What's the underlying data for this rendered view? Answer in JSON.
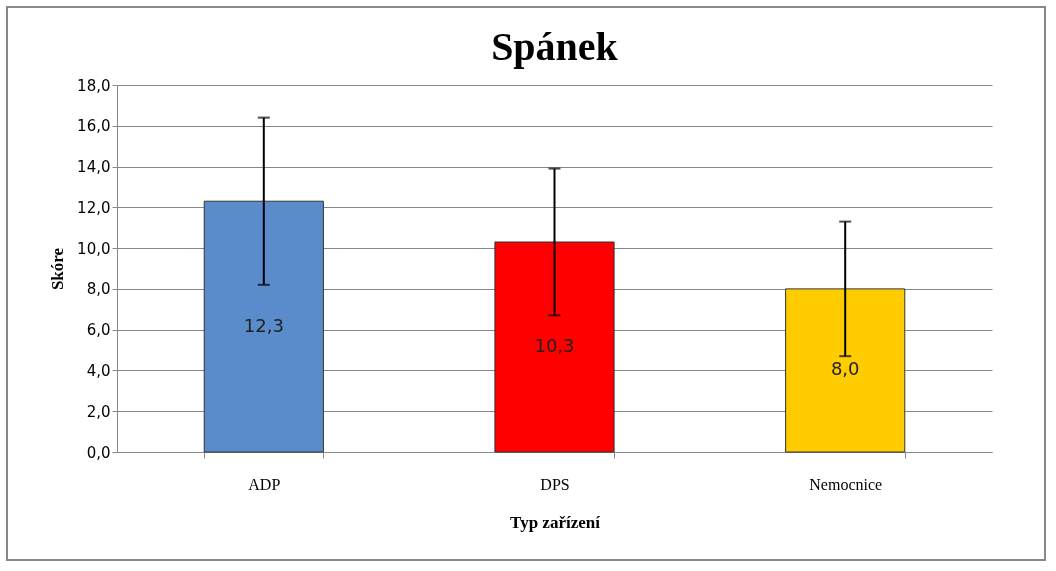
{
  "chart_data": {
    "type": "bar",
    "title": "Spánek",
    "xlabel": "Typ zařízení",
    "ylabel": "Skóre",
    "categories": [
      "ADP",
      "DPS",
      "Nemocnice"
    ],
    "values": [
      12.3,
      10.3,
      8.0
    ],
    "colors": [
      "#5a8ccc",
      "#ff0000",
      "#ffcc00"
    ],
    "errors": [
      4.1,
      3.6,
      3.3
    ],
    "value_labels": [
      "12,3",
      "10,3",
      "8,0"
    ],
    "ylim": [
      0,
      18
    ],
    "yticks": [
      {
        "value": 0,
        "label": "0,0"
      },
      {
        "value": 2,
        "label": "2,0"
      },
      {
        "value": 4,
        "label": "4,0"
      },
      {
        "value": 6,
        "label": "6,0"
      },
      {
        "value": 8,
        "label": "8,0"
      },
      {
        "value": 10,
        "label": "10,0"
      },
      {
        "value": 12,
        "label": "12,0"
      },
      {
        "value": 14,
        "label": "14,0"
      },
      {
        "value": 16,
        "label": "16,0"
      },
      {
        "value": 18,
        "label": "18,0"
      }
    ],
    "grid": "y"
  }
}
